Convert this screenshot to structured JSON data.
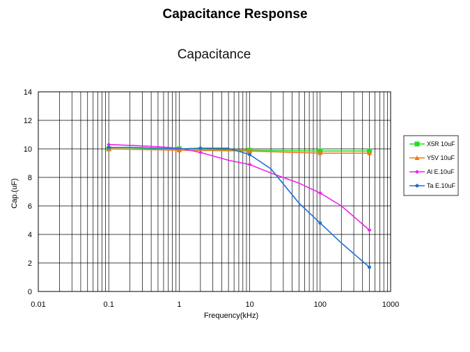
{
  "slide": {
    "title": "Capacitance Response"
  },
  "chart_data": {
    "type": "line",
    "title": "Capacitance",
    "xlabel": "Frequency(kHz)",
    "ylabel": "Cap.(uF)",
    "x_scale": "log",
    "xlim": [
      0.01,
      1000
    ],
    "ylim": [
      0,
      14
    ],
    "grid": true,
    "legend_position": "right",
    "x_ticks": [
      "0.01",
      "0.1",
      "1",
      "10",
      "100",
      "1000"
    ],
    "y_ticks": [
      "0",
      "2",
      "4",
      "6",
      "8",
      "10",
      "12",
      "14"
    ],
    "series": [
      {
        "name": "X5R 10uF",
        "color": "#22dd22",
        "marker": "square",
        "x": [
          0.1,
          1,
          10,
          100,
          500
        ],
        "y": [
          10.0,
          10.0,
          9.9,
          9.85,
          9.85
        ]
      },
      {
        "name": "Y5V 10uF",
        "color": "#ee7a1a",
        "marker": "triangle",
        "x": [
          0.1,
          1,
          10,
          100,
          500
        ],
        "y": [
          10.0,
          9.9,
          9.85,
          9.7,
          9.7
        ]
      },
      {
        "name": "Al E.10uF",
        "color": "#ee22ee",
        "marker": "diamond",
        "x": [
          0.1,
          0.2,
          0.5,
          1,
          2,
          5,
          10,
          20,
          50,
          100,
          200,
          500
        ],
        "y": [
          10.3,
          10.25,
          10.15,
          10.05,
          9.75,
          9.2,
          8.9,
          8.3,
          7.6,
          6.9,
          6.0,
          4.3
        ]
      },
      {
        "name": "Ta E.10uF",
        "color": "#1e6fd0",
        "marker": "circle",
        "x": [
          0.1,
          0.2,
          0.5,
          1,
          2,
          5,
          10,
          20,
          50,
          100,
          200,
          500
        ],
        "y": [
          10.1,
          10.1,
          10.05,
          10.0,
          10.05,
          10.05,
          9.6,
          8.6,
          6.2,
          4.8,
          3.4,
          1.7
        ]
      }
    ]
  }
}
